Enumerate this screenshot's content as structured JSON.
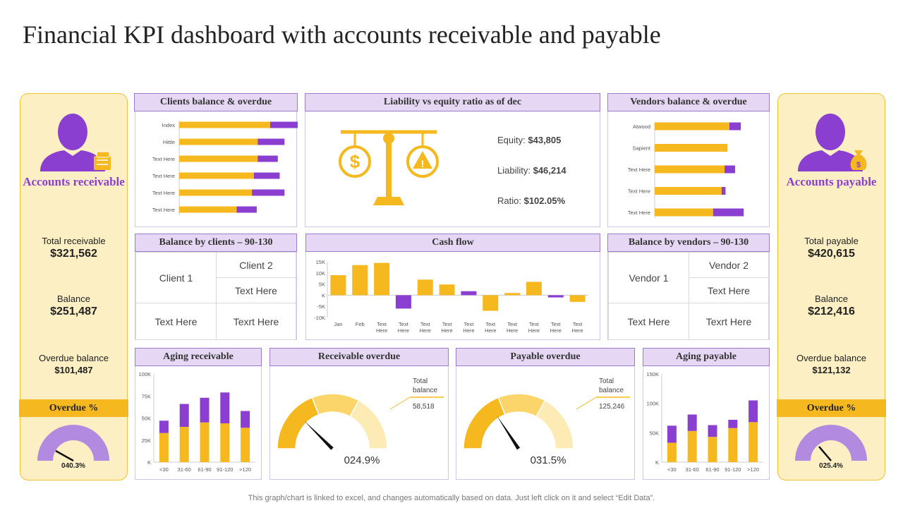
{
  "title": "Financial KPI dashboard with accounts receivable and payable",
  "colors": {
    "yellow": "#f5b91f",
    "purple": "#8b3fd0",
    "lightPurple": "#b28ae0",
    "header": "#e6d8f5"
  },
  "left": {
    "heading": "Accounts receivable",
    "icon": "person-coins-icon",
    "total_label": "Total receivable",
    "total_value": "$321,562",
    "balance_label": "Balance",
    "balance_value": "$251,487",
    "overdue_label": "Overdue balance",
    "overdue_value": "$101,487",
    "overdue_pct_label": "Overdue %",
    "overdue_pct_value": "040.3%"
  },
  "right": {
    "heading": "Accounts payable",
    "icon": "person-moneybag-icon",
    "total_label": "Total payable",
    "total_value": "$420,615",
    "balance_label": "Balance",
    "balance_value": "$212,416",
    "overdue_label": "Overdue balance",
    "overdue_value": "$121,132",
    "overdue_pct_label": "Overdue %",
    "overdue_pct_value": "025.4%"
  },
  "panels": {
    "clients_title": "Clients balance & overdue",
    "liability_title": "Liability vs equity ratio as of dec",
    "vendors_title": "Vendors balance & overdue",
    "bal_clients_title": "Balance by clients – 90-130",
    "cashflow_title": "Cash flow",
    "bal_vendors_title": "Balance by vendors – 90-130",
    "aging_rec_title": "Aging receivable",
    "rec_overdue_title": "Receivable overdue",
    "pay_overdue_title": "Payable overdue",
    "aging_pay_title": "Aging payable"
  },
  "liability": {
    "icon": "scale-dollar-warning-icon",
    "equity_label": "Equity:",
    "equity_value": "$43,805",
    "liability_label": "Liability:",
    "liability_value": "$46,214",
    "ratio_label": "Ratio:",
    "ratio_value": "$102.05%"
  },
  "clients_table": {
    "cells": [
      [
        "Client 1",
        "Client 2"
      ],
      [
        "Text Here"
      ],
      [
        "Text Here",
        "Text Here",
        "Texrt Here"
      ]
    ]
  },
  "vendors_table": {
    "cells": [
      [
        "Vendor 1",
        "Vendor 2"
      ],
      [
        "Text Here"
      ],
      [
        "Text Here",
        "Text Here",
        "Texrt Here"
      ]
    ]
  },
  "footer": "This graph/chart is linked to excel,  and changes automatically based on data. Just left click on it and select “Edit Data”.",
  "chart_data": [
    {
      "id": "clients",
      "type": "bar",
      "orientation": "horizontal",
      "stacked": true,
      "categories": [
        "Index",
        "Hittle",
        "Text Here",
        "Text Here",
        "Text Here",
        "Text Here"
      ],
      "series": [
        {
          "name": "Balance",
          "values": [
            95,
            82,
            82,
            78,
            76,
            60
          ]
        },
        {
          "name": "Overdue",
          "values": [
            37,
            28,
            21,
            27,
            34,
            21
          ]
        }
      ]
    },
    {
      "id": "vendors",
      "type": "bar",
      "orientation": "horizontal",
      "stacked": true,
      "categories": [
        "Atwood",
        "Sapient",
        "Text Here",
        "Text Here",
        "Text Here"
      ],
      "series": [
        {
          "name": "Balance",
          "values": [
            78,
            76,
            73,
            70,
            61
          ]
        },
        {
          "name": "Overdue",
          "values": [
            12,
            0,
            11,
            4,
            32
          ]
        }
      ]
    },
    {
      "id": "cashflow",
      "type": "bar",
      "title": "Cash flow",
      "categories": [
        "Jan",
        "Feb",
        "Text Here",
        "Text Here",
        "Text Here",
        "Text Here",
        "Text Here",
        "Text Here",
        "Text Here",
        "Text Here",
        "Text Here",
        "Text Here"
      ],
      "values": [
        9000,
        13500,
        14500,
        -6000,
        7000,
        4800,
        1800,
        -7000,
        1000,
        6000,
        -1000,
        -3000
      ],
      "ylim": [
        -10000,
        15000
      ],
      "yticks": [
        "15K",
        "10K",
        "5K",
        "K",
        "-5K",
        "-10K"
      ],
      "yticks_values": [
        15000,
        10000,
        5000,
        0,
        -5000,
        -10000
      ]
    },
    {
      "id": "aging_receivable",
      "type": "bar",
      "stacked": true,
      "title": "Aging receivable",
      "categories": [
        "<30",
        "31-60",
        "61-90",
        "91-120",
        ">120"
      ],
      "series": [
        {
          "name": "Current",
          "values": [
            33000,
            40000,
            45000,
            44000,
            39000
          ]
        },
        {
          "name": "Overdue",
          "values": [
            14000,
            26000,
            28000,
            35000,
            19000
          ]
        }
      ],
      "ylim": [
        0,
        100000
      ],
      "yticks": [
        "100K",
        "75K",
        "50K",
        "25K",
        "K"
      ],
      "yticks_values": [
        100000,
        75000,
        50000,
        25000,
        0
      ]
    },
    {
      "id": "aging_payable",
      "type": "bar",
      "stacked": true,
      "title": "Aging payable",
      "categories": [
        "<30",
        "31-60",
        "61-90",
        "91-120",
        ">120"
      ],
      "series": [
        {
          "name": "Current",
          "values": [
            33000,
            53000,
            43000,
            58000,
            68000
          ]
        },
        {
          "name": "Overdue",
          "values": [
            29000,
            28000,
            20000,
            14000,
            37000
          ]
        }
      ],
      "ylim": [
        0,
        150000
      ],
      "yticks": [
        "150K",
        "100K",
        "50K",
        "K"
      ],
      "yticks_values": [
        150000,
        100000,
        50000,
        0
      ]
    },
    {
      "id": "receivable_overdue",
      "type": "gauge",
      "value_label": "024.9%",
      "value": 24.9,
      "legend_label": "Total balance",
      "legend_value": "58,518"
    },
    {
      "id": "payable_overdue",
      "type": "gauge",
      "value_label": "031.5%",
      "value": 31.5,
      "legend_label": "Total balance",
      "legend_value": "125,246"
    },
    {
      "id": "left_overdue_pct",
      "type": "gauge",
      "value_label": "040.3%",
      "value": 40.3
    },
    {
      "id": "right_overdue_pct",
      "type": "gauge",
      "value_label": "025.4%",
      "value": 25.4
    }
  ]
}
